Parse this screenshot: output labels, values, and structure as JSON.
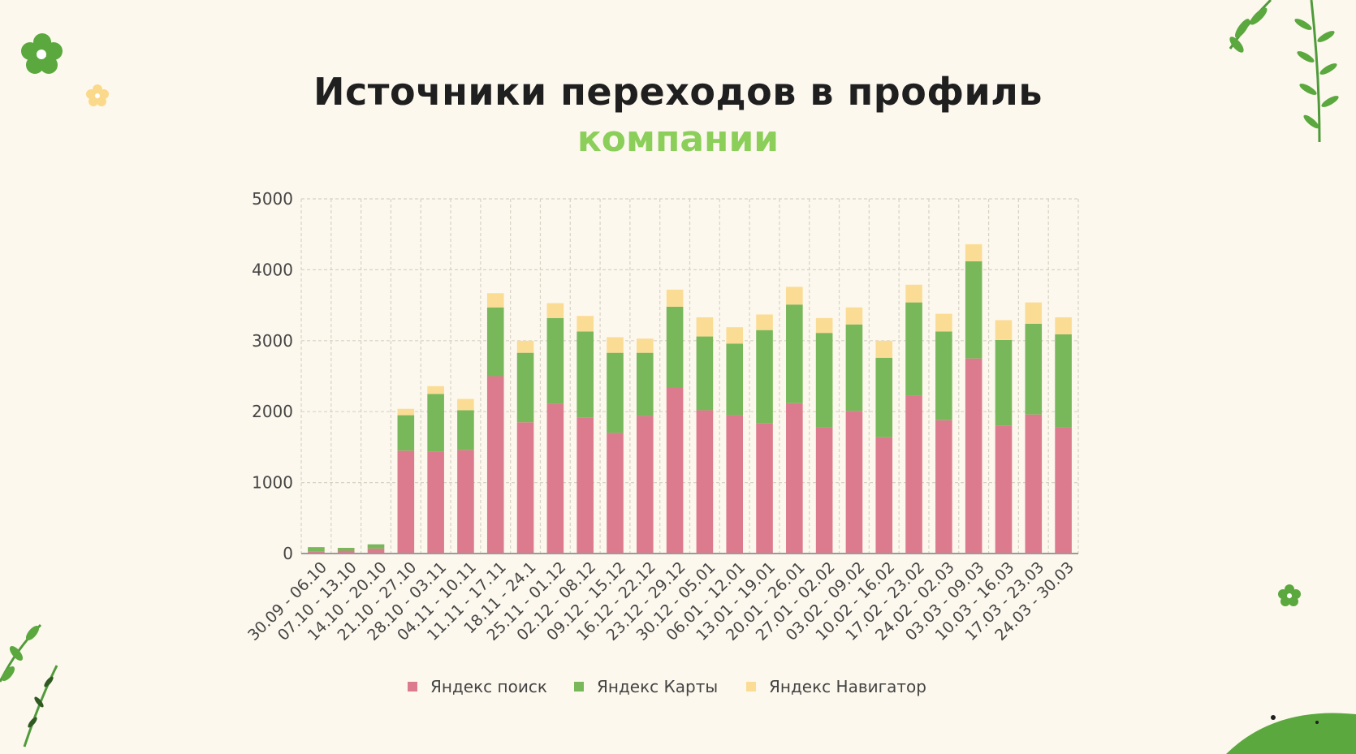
{
  "title": {
    "line1": "Источники переходов в профиль",
    "line2": "компании"
  },
  "colors": {
    "search": "#dd7b8e",
    "maps": "#78b85a",
    "navigator": "#fbdc95",
    "title_accent": "#8bcf5a",
    "background": "#fdf8ee"
  },
  "chart_data": {
    "type": "bar",
    "stacked": true,
    "title": "Источники переходов в профиль компании",
    "xlabel": "",
    "ylabel": "",
    "ylim": [
      0,
      5000
    ],
    "yticks": [
      0,
      1000,
      2000,
      3000,
      4000,
      5000
    ],
    "grid": true,
    "legend_position": "bottom-center",
    "categories": [
      "30.09 - 06.10",
      "07.10 - 13.10",
      "14.10 - 20.10",
      "21.10 - 27.10",
      "28.10 - 03.11",
      "04.11 - 10.11",
      "11.11 - 17.11",
      "18.11 - 24.1",
      "25.11 - 01.12",
      "02.12 - 08.12",
      "09.12 - 15.12",
      "16.12 - 22.12",
      "23.12 - 29.12",
      "30.12 - 05.01",
      "06.01 - 12.01",
      "13.01 - 19.01",
      "20.01 - 26.01",
      "27.01 - 02.02",
      "03.02 - 09.02",
      "10.02 - 16.02",
      "17.02 - 23.02",
      "24.02 - 02.03",
      "03.03 - 09.03",
      "10.03 - 16.03",
      "17.03 - 23.03",
      "24.03 - 30.03"
    ],
    "series": [
      {
        "name": "Яндекс поиск",
        "color": "#dd7b8e",
        "values": [
          30,
          40,
          70,
          1450,
          1440,
          1460,
          2500,
          1850,
          2110,
          1920,
          1700,
          1940,
          2340,
          2020,
          1950,
          1840,
          2120,
          1780,
          2010,
          1640,
          2230,
          1880,
          2750,
          1800,
          1960,
          1780
        ]
      },
      {
        "name": "Яндекс Карты",
        "color": "#78b85a",
        "values": [
          60,
          40,
          60,
          500,
          810,
          560,
          970,
          980,
          1210,
          1210,
          1130,
          890,
          1140,
          1040,
          1010,
          1310,
          1390,
          1330,
          1220,
          1120,
          1310,
          1250,
          1370,
          1210,
          1280,
          1310
        ]
      },
      {
        "name": "Яндекс Навигатор",
        "color": "#fbdc95",
        "values": [
          0,
          0,
          0,
          90,
          110,
          160,
          200,
          170,
          210,
          220,
          220,
          200,
          240,
          270,
          230,
          220,
          250,
          210,
          240,
          240,
          250,
          250,
          240,
          280,
          300,
          240
        ]
      }
    ]
  }
}
